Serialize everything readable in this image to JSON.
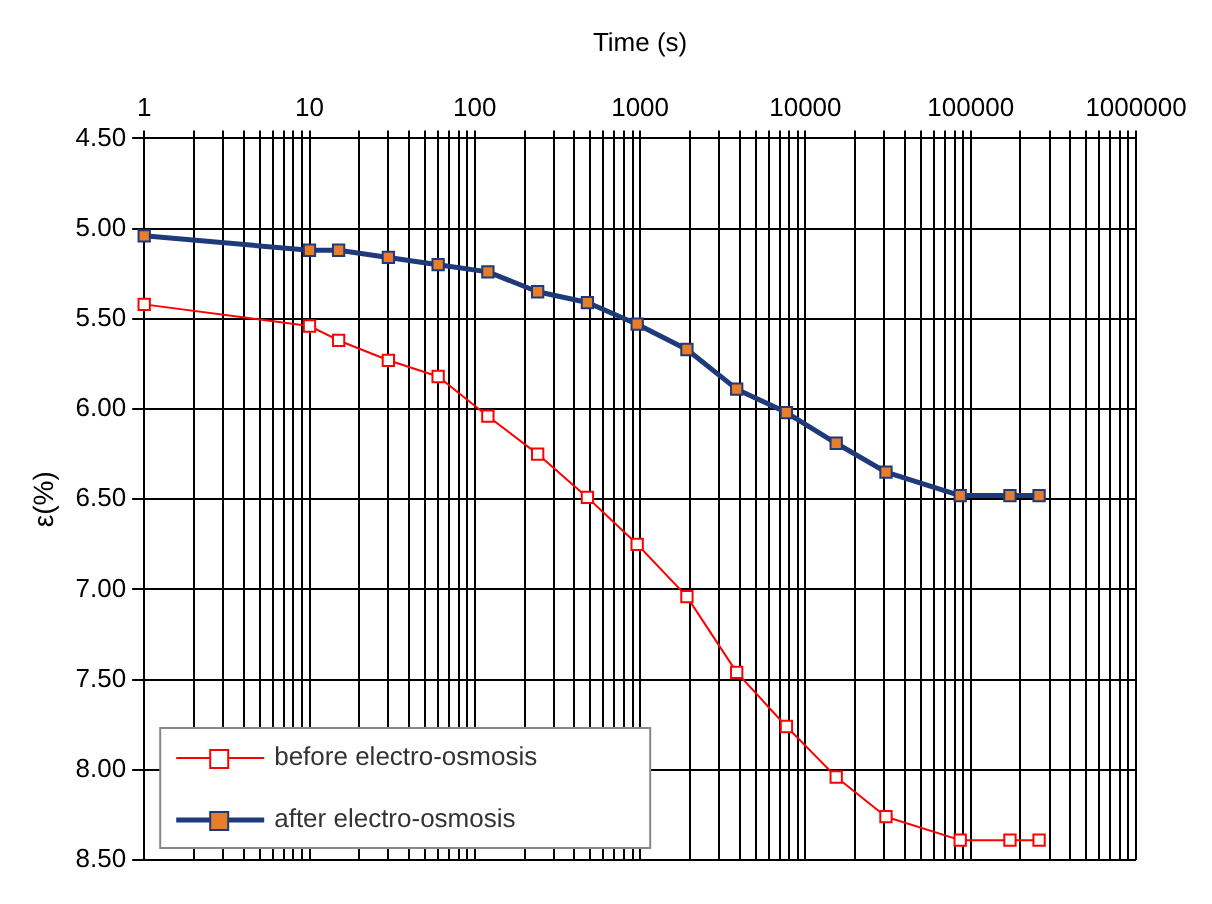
{
  "chart_data": {
    "type": "line",
    "xlabel": "Time (s)",
    "ylabel": "ε(%)",
    "log": "x",
    "grid": true,
    "legend": "bottom left",
    "marker": "square",
    "line_style": "solid",
    "xlim": [
      1,
      1000000
    ],
    "xticks": [
      1,
      {
        "value": 2,
        "label": null
      },
      {
        "value": 3,
        "label": null
      },
      {
        "value": 4,
        "label": null
      },
      {
        "value": 5,
        "label": null
      },
      {
        "value": 6,
        "label": null
      },
      {
        "value": 7,
        "label": null
      },
      {
        "value": 8,
        "label": null
      },
      {
        "value": 9,
        "label": null
      },
      10,
      {
        "value": 20,
        "label": null
      },
      {
        "value": 30,
        "label": null
      },
      {
        "value": 40,
        "label": null
      },
      {
        "value": 50,
        "label": null
      },
      {
        "value": 60,
        "label": null
      },
      {
        "value": 70,
        "label": null
      },
      {
        "value": 80,
        "label": null
      },
      {
        "value": 90,
        "label": null
      },
      100,
      {
        "value": 200,
        "label": null
      },
      {
        "value": 300,
        "label": null
      },
      {
        "value": 400,
        "label": null
      },
      {
        "value": 500,
        "label": null
      },
      {
        "value": 600,
        "label": null
      },
      {
        "value": 700,
        "label": null
      },
      {
        "value": 800,
        "label": null
      },
      {
        "value": 900,
        "label": null
      },
      1000,
      {
        "value": 2000,
        "label": null
      },
      {
        "value": 3000,
        "label": null
      },
      {
        "value": 4000,
        "label": null
      },
      {
        "value": 5000,
        "label": null
      },
      {
        "value": 6000,
        "label": null
      },
      {
        "value": 7000,
        "label": null
      },
      {
        "value": 8000,
        "label": null
      },
      {
        "value": 9000,
        "label": null
      },
      10000,
      {
        "value": 20000,
        "label": null
      },
      {
        "value": 30000,
        "label": null
      },
      {
        "value": 40000,
        "label": null
      },
      {
        "value": 50000,
        "label": null
      },
      {
        "value": 60000,
        "label": null
      },
      {
        "value": 70000,
        "label": null
      },
      {
        "value": 80000,
        "label": null
      },
      {
        "value": 90000,
        "label": null
      },
      100000,
      {
        "value": 200000,
        "label": null
      },
      {
        "value": 300000,
        "label": null
      },
      {
        "value": 400000,
        "label": null
      },
      {
        "value": 500000,
        "label": null
      },
      {
        "value": 600000,
        "label": null
      },
      {
        "value": 700000,
        "label": null
      },
      {
        "value": 800000,
        "label": null
      },
      {
        "value": 900000,
        "label": null
      },
      1000000
    ],
    "ylim": [
      8.5,
      4.5
    ],
    "yticks": [
      {
        "value": 4.5,
        "label": "4.50"
      },
      {
        "value": 5,
        "label": "5.00"
      },
      {
        "value": 5.5,
        "label": "5.50"
      },
      {
        "value": 6,
        "label": "6.00"
      },
      {
        "value": 6.5,
        "label": "6.50"
      },
      {
        "value": 7,
        "label": "7.00"
      },
      {
        "value": 7.5,
        "label": "7.50"
      },
      {
        "value": 8,
        "label": "8.00"
      },
      {
        "value": 8.5,
        "label": "8.50"
      }
    ],
    "x": [
      1,
      10,
      15,
      30,
      60,
      120,
      240,
      480,
      960,
      1920,
      3840,
      7680,
      15360,
      30720,
      86400,
      172800,
      259200
    ],
    "series": [
      {
        "name": "before electro-osmosis",
        "color": "#ff0000",
        "values": [
          5.42,
          5.54,
          5.62,
          5.73,
          5.82,
          6.04,
          6.25,
          6.49,
          6.75,
          7.04,
          7.46,
          7.76,
          8.04,
          8.26,
          8.39,
          8.39,
          8.39
        ]
      },
      {
        "name": "after electro-osmosis",
        "color": "#1f3a7a",
        "values": [
          5.04,
          5.12,
          5.12,
          5.16,
          5.2,
          5.24,
          5.35,
          5.41,
          5.53,
          5.67,
          5.89,
          6.02,
          6.19,
          6.35,
          6.48,
          6.48,
          6.48
        ]
      }
    ]
  }
}
